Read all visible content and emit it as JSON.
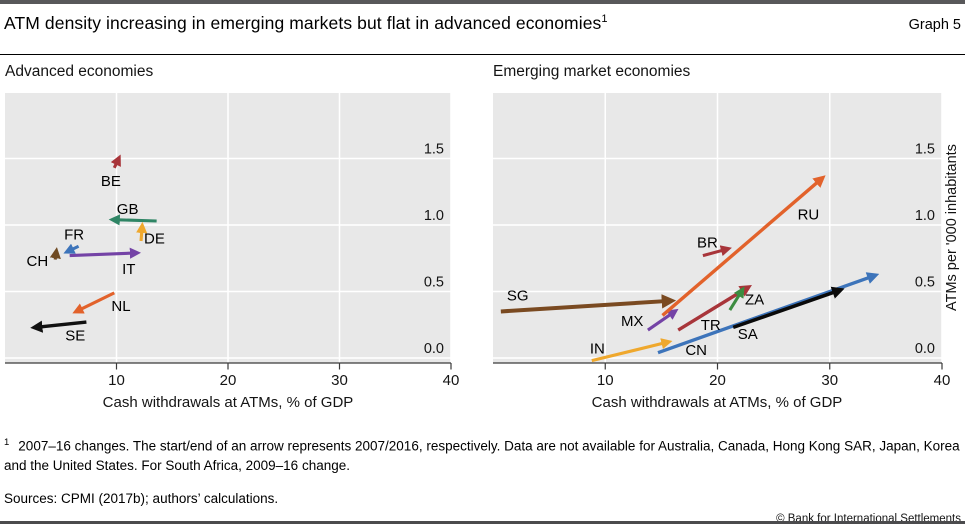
{
  "header": {
    "title": "ATM density increasing in emerging markets but flat in advanced economies",
    "title_superscript": "1",
    "graph_label": "Graph 5"
  },
  "style": {
    "plot_bg": "#e8e8e8",
    "grid": "#ffffff",
    "axis": "#3a3a3a",
    "text": "#141414"
  },
  "chart_data": [
    {
      "type": "scatter",
      "mark": "arrow",
      "title": "Advanced economies",
      "xlabel": "Cash withdrawals at ATMs, % of GDP",
      "ylabel": "",
      "xlim": [
        0,
        40
      ],
      "ylim": [
        -0.04,
        2.0
      ],
      "x_ticks": [
        10,
        20,
        30,
        40
      ],
      "y_ticks": [
        0.0,
        0.5,
        1.0,
        1.5
      ],
      "y_tick_labels": [
        "0.0",
        "0.5",
        "1.0",
        "1.5"
      ],
      "grid": true,
      "note": "arrow start = 2007 value, arrow end = 2016 value; x = cash withdrawals at ATMs (% of GDP), y = ATMs per '000 inhabitants",
      "series": [
        {
          "code": "BE",
          "color": "#a8353a",
          "start": [
            9.8,
            1.43
          ],
          "end": [
            10.2,
            1.5
          ],
          "label_at": [
            9.5,
            1.33
          ]
        },
        {
          "code": "GB",
          "color": "#2f8565",
          "start": [
            13.6,
            1.03
          ],
          "end": [
            9.7,
            1.04
          ],
          "label_at": [
            11.0,
            1.12
          ]
        },
        {
          "code": "DE",
          "color": "#efa82d",
          "start": [
            12.2,
            0.88
          ],
          "end": [
            12.3,
            0.99
          ],
          "label_at": [
            13.4,
            0.9
          ]
        },
        {
          "code": "FR",
          "color": "#3d74ba",
          "start": [
            6.6,
            0.84
          ],
          "end": [
            5.6,
            0.8
          ],
          "label_at": [
            6.2,
            0.93
          ]
        },
        {
          "code": "CH",
          "color": "#6f4a22",
          "start": [
            4.5,
            0.74
          ],
          "end": [
            4.6,
            0.8
          ],
          "label_at": [
            2.9,
            0.73
          ]
        },
        {
          "code": "IT",
          "color": "#7443a6",
          "start": [
            5.8,
            0.77
          ],
          "end": [
            11.8,
            0.79
          ],
          "label_at": [
            11.1,
            0.67
          ]
        },
        {
          "code": "NL",
          "color": "#e2622b",
          "start": [
            9.8,
            0.49
          ],
          "end": [
            6.4,
            0.35
          ],
          "label_at": [
            10.4,
            0.39
          ]
        },
        {
          "code": "SE",
          "color": "#111111",
          "start": [
            7.3,
            0.27
          ],
          "end": [
            2.7,
            0.23
          ],
          "label_at": [
            6.3,
            0.17
          ],
          "w": 3.4
        }
      ]
    },
    {
      "type": "scatter",
      "mark": "arrow",
      "title": "Emerging market economies",
      "xlabel": "Cash withdrawals at ATMs, % of GDP",
      "ylabel": "ATMs per '000 inhabitants",
      "xlim": [
        0,
        40
      ],
      "ylim": [
        -0.04,
        2.0
      ],
      "x_ticks": [
        10,
        20,
        30,
        40
      ],
      "y_ticks": [
        0.0,
        0.5,
        1.0,
        1.5
      ],
      "y_tick_labels": [
        "0.0",
        "0.5",
        "1.0",
        "1.5"
      ],
      "grid": true,
      "note": "arrow start = 2007 value, arrow end = 2016 value; for SA 2009 start",
      "series": [
        {
          "code": "SG",
          "color": "#7a4a21",
          "start": [
            0.7,
            0.35
          ],
          "end": [
            15.8,
            0.43
          ],
          "label_at": [
            2.2,
            0.47
          ],
          "w": 4
        },
        {
          "code": "IN",
          "color": "#efa82d",
          "start": [
            8.8,
            -0.02
          ],
          "end": [
            15.6,
            0.12
          ],
          "label_at": [
            9.3,
            0.07
          ]
        },
        {
          "code": "MX",
          "color": "#7443a6",
          "start": [
            13.8,
            0.21
          ],
          "end": [
            16.2,
            0.35
          ],
          "label_at": [
            12.4,
            0.28
          ]
        },
        {
          "code": "CN",
          "color": "#3d74ba",
          "start": [
            14.7,
            0.04
          ],
          "end": [
            34.0,
            0.62
          ],
          "label_at": [
            18.1,
            0.06
          ],
          "w": 3.4
        },
        {
          "code": "TR",
          "color": "#a8353a",
          "start": [
            16.5,
            0.21
          ],
          "end": [
            22.7,
            0.53
          ],
          "label_at": [
            19.4,
            0.25
          ],
          "w": 3.4
        },
        {
          "code": "BR",
          "color": "#a8353a",
          "start": [
            18.7,
            0.77
          ],
          "end": [
            20.9,
            0.82
          ],
          "label_at": [
            19.1,
            0.87
          ]
        },
        {
          "code": "ZA",
          "color": "#3c8c40",
          "start": [
            21.1,
            0.36
          ],
          "end": [
            22.2,
            0.51
          ],
          "label_at": [
            23.3,
            0.44
          ]
        },
        {
          "code": "SA",
          "color": "#0a0a0a",
          "start": [
            21.4,
            0.23
          ],
          "end": [
            30.9,
            0.51
          ],
          "label_at": [
            22.7,
            0.18
          ],
          "w": 3.5
        },
        {
          "code": "RU",
          "color": "#e2622b",
          "start": [
            15.1,
            0.32
          ],
          "end": [
            29.3,
            1.35
          ],
          "label_at": [
            28.1,
            1.08
          ],
          "w": 3.4
        }
      ]
    }
  ],
  "footnote": {
    "marker": "1",
    "text": "2007–16 changes. The start/end of an arrow represents 2007/2016, respectively. Data are not available for Australia, Canada, Hong Kong SAR, Japan, Korea and the United States. For South Africa, 2009–16 change."
  },
  "sources": "Sources: CPMI (2017b); authors’ calculations.",
  "copyright": "© Bank for International Settlements"
}
